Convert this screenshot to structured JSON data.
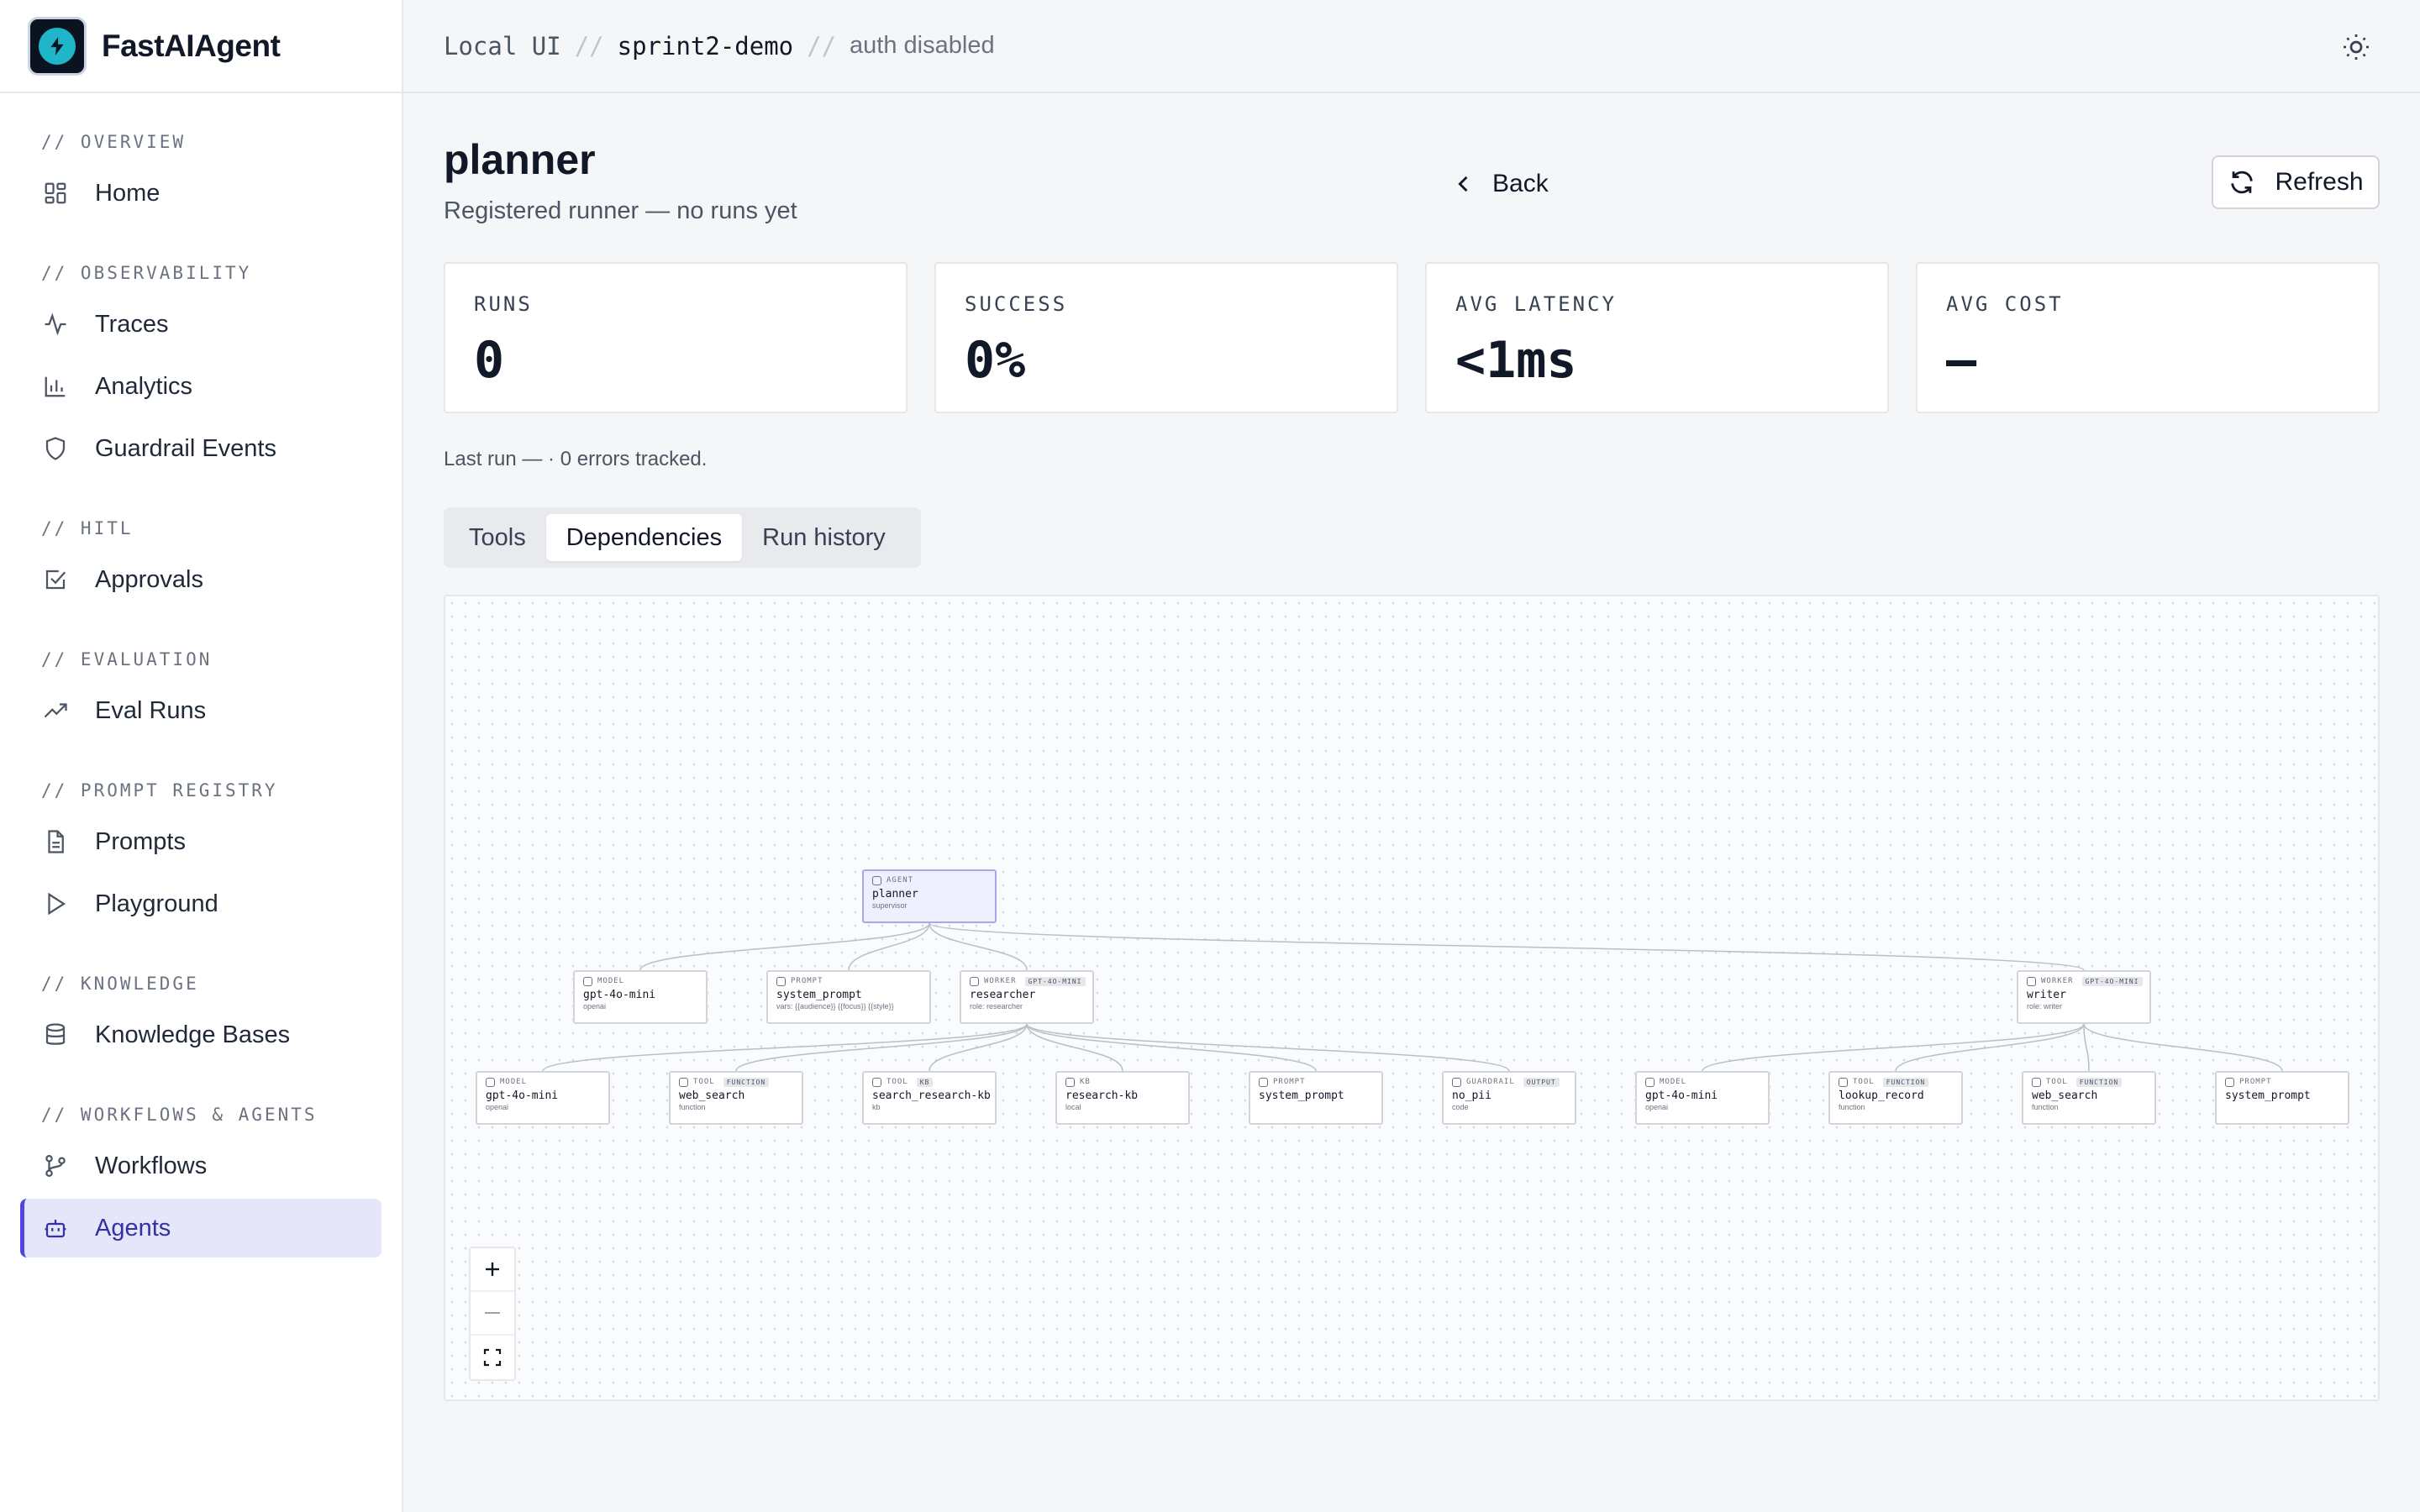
{
  "brand": {
    "name": "FastAIAgent"
  },
  "sidebar": {
    "sections": [
      {
        "header": "// OVERVIEW",
        "items": [
          {
            "label": "Home",
            "icon": "home-grid-icon"
          }
        ]
      },
      {
        "header": "// OBSERVABILITY",
        "items": [
          {
            "label": "Traces",
            "icon": "activity-icon"
          },
          {
            "label": "Analytics",
            "icon": "bar-chart-icon"
          },
          {
            "label": "Guardrail Events",
            "icon": "shield-icon"
          }
        ]
      },
      {
        "header": "// HITL",
        "items": [
          {
            "label": "Approvals",
            "icon": "check-square-icon"
          }
        ]
      },
      {
        "header": "// EVALUATION",
        "items": [
          {
            "label": "Eval Runs",
            "icon": "trending-up-icon"
          }
        ]
      },
      {
        "header": "// PROMPT REGISTRY",
        "items": [
          {
            "label": "Prompts",
            "icon": "file-text-icon"
          },
          {
            "label": "Playground",
            "icon": "play-icon"
          }
        ]
      },
      {
        "header": "// KNOWLEDGE",
        "items": [
          {
            "label": "Knowledge Bases",
            "icon": "database-icon"
          }
        ]
      },
      {
        "header": "// WORKFLOWS & AGENTS",
        "items": [
          {
            "label": "Workflows",
            "icon": "git-branch-icon"
          },
          {
            "label": "Agents",
            "icon": "bot-icon",
            "active": true
          }
        ]
      }
    ]
  },
  "breadcrumb": {
    "root": "Local UI",
    "project": "sprint2-demo",
    "auth": "auth disabled",
    "separator": "//"
  },
  "header": {
    "title": "planner",
    "subtitle": "Registered runner — no runs yet",
    "back_label": "Back",
    "refresh_label": "Refresh"
  },
  "stats": [
    {
      "label": "RUNS",
      "value": "0"
    },
    {
      "label": "SUCCESS",
      "value": "0%"
    },
    {
      "label": "AVG LATENCY",
      "value": "<1ms"
    },
    {
      "label": "AVG COST",
      "value": "—"
    }
  ],
  "last_run": "Last run — · 0 errors tracked.",
  "tabs": [
    {
      "label": "Tools"
    },
    {
      "label": "Dependencies",
      "active": true
    },
    {
      "label": "Run history"
    }
  ],
  "graph": {
    "nodes": {
      "agent": {
        "kind": "AGENT",
        "name": "planner",
        "sub": "supervisor"
      },
      "model1": {
        "kind": "MODEL",
        "name": "gpt-4o-mini",
        "sub": "openai"
      },
      "prompt1": {
        "kind": "PROMPT",
        "name": "system_prompt",
        "sub": "vars: {{audience}} {{focus}} {{style}}"
      },
      "researcher": {
        "kind": "WORKER",
        "badge": "GPT-4O-MINI",
        "name": "researcher",
        "sub": "role: researcher"
      },
      "writer": {
        "kind": "WORKER",
        "badge": "GPT-4O-MINI",
        "name": "writer",
        "sub": "role: writer"
      },
      "r_model": {
        "kind": "MODEL",
        "name": "gpt-4o-mini",
        "sub": "openai"
      },
      "r_tool1": {
        "kind": "TOOL",
        "badge": "FUNCTION",
        "name": "web_search",
        "sub": "function"
      },
      "r_tool2": {
        "kind": "TOOL",
        "badge": "KB",
        "name": "search_research-kb",
        "sub": "kb"
      },
      "r_kb": {
        "kind": "KB",
        "name": "research-kb",
        "sub": "local"
      },
      "r_prompt": {
        "kind": "PROMPT",
        "name": "system_prompt",
        "sub": ""
      },
      "r_guard": {
        "kind": "GUARDRAIL",
        "badge": "OUTPUT",
        "name": "no_pii",
        "sub": "code"
      },
      "w_model": {
        "kind": "MODEL",
        "name": "gpt-4o-mini",
        "sub": "openai"
      },
      "w_tool1": {
        "kind": "TOOL",
        "badge": "FUNCTION",
        "name": "lookup_record",
        "sub": "function"
      },
      "w_tool2": {
        "kind": "TOOL",
        "badge": "FUNCTION",
        "name": "web_search",
        "sub": "function"
      },
      "w_prompt": {
        "kind": "PROMPT",
        "name": "system_prompt",
        "sub": ""
      }
    }
  },
  "zoom_controls": {
    "zoom_in": "+",
    "zoom_out": "—"
  }
}
